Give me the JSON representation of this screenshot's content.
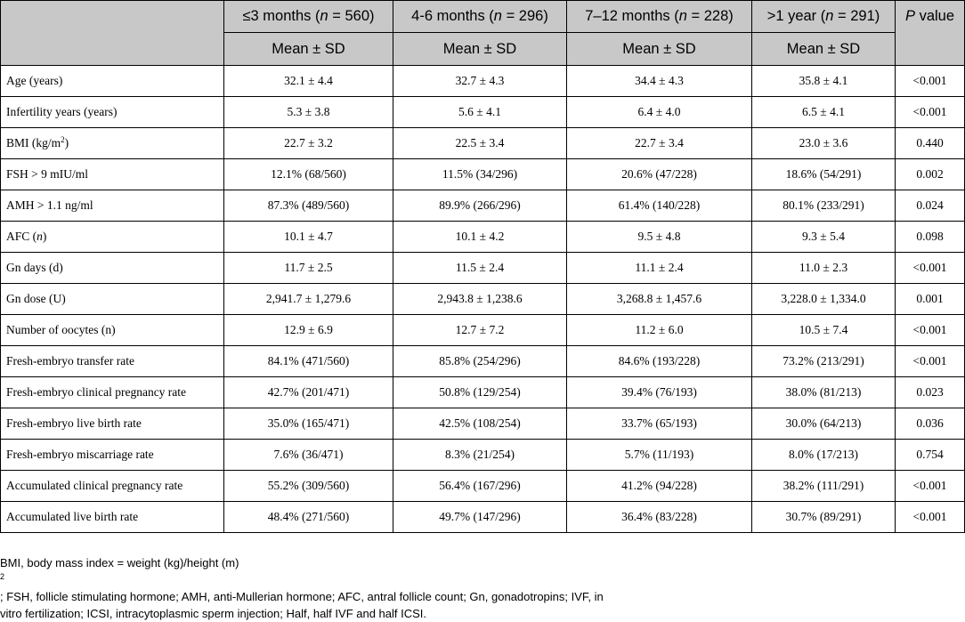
{
  "header": {
    "groups": [
      {
        "prefix": "≤3 months (",
        "n_label": "n",
        "suffix": " = 560)"
      },
      {
        "prefix": "4-6 months (",
        "n_label": "n",
        "suffix": " = 296)"
      },
      {
        "prefix": "7–12 months (",
        "n_label": "n",
        "suffix": " = 228)"
      },
      {
        "prefix": ">1 year (",
        "n_label": "n",
        "suffix": " = 291)"
      }
    ],
    "pvalue": {
      "p": "P",
      "rest": " value"
    },
    "subheaders": [
      "Mean ± SD",
      "Mean ± SD",
      "Mean ± SD",
      "Mean ± SD"
    ]
  },
  "rows": [
    {
      "label": "Age (years)",
      "values": [
        "32.1 ± 4.4",
        "32.7 ± 4.3",
        "34.4 ± 4.3",
        "35.8 ± 4.1"
      ],
      "p": "<0.001"
    },
    {
      "label": "Infertility years (years)",
      "values": [
        "5.3 ± 3.8",
        "5.6 ± 4.1",
        "6.4 ± 4.0",
        "6.5 ± 4.1"
      ],
      "p": "<0.001"
    },
    {
      "label": "BMI (kg/m",
      "label_sup": "2",
      "label_after": ")",
      "values": [
        "22.7 ± 3.2",
        "22.5 ± 3.4",
        "22.7 ± 3.4",
        "23.0 ± 3.6"
      ],
      "p": "0.440"
    },
    {
      "label": "FSH > 9 mIU/ml",
      "values": [
        "12.1% (68/560)",
        "11.5% (34/296)",
        "20.6% (47/228)",
        "18.6% (54/291)"
      ],
      "p": "0.002"
    },
    {
      "label": "AMH > 1.1 ng/ml",
      "values": [
        "87.3% (489/560)",
        "89.9% (266/296)",
        "61.4% (140/228)",
        "80.1% (233/291)"
      ],
      "p": "0.024"
    },
    {
      "label": "AFC (",
      "label_ital": "n",
      "label_after": ")",
      "values": [
        "10.1 ± 4.7",
        "10.1 ± 4.2",
        "9.5 ± 4.8",
        "9.3 ± 5.4"
      ],
      "p": "0.098"
    },
    {
      "label": "Gn days (d)",
      "values": [
        "11.7 ± 2.5",
        "11.5 ± 2.4",
        "11.1 ± 2.4",
        "11.0 ± 2.3"
      ],
      "p": "<0.001"
    },
    {
      "label": "Gn dose (U)",
      "values": [
        "2,941.7 ± 1,279.6",
        "2,943.8 ± 1,238.6",
        "3,268.8 ± 1,457.6",
        "3,228.0 ± 1,334.0"
      ],
      "p": "0.001"
    },
    {
      "label": "Number of oocytes (n)",
      "values": [
        "12.9 ± 6.9",
        "12.7 ± 7.2",
        "11.2 ± 6.0",
        "10.5 ± 7.4"
      ],
      "p": "<0.001"
    },
    {
      "label": "Fresh-embryo transfer rate",
      "values": [
        "84.1% (471/560)",
        "85.8% (254/296)",
        "84.6% (193/228)",
        "73.2% (213/291)"
      ],
      "p": "<0.001"
    },
    {
      "label": "Fresh-embryo clinical pregnancy rate",
      "values": [
        "42.7% (201/471)",
        "50.8% (129/254)",
        "39.4% (76/193)",
        "38.0% (81/213)"
      ],
      "p": "0.023"
    },
    {
      "label": "Fresh-embryo live birth rate",
      "values": [
        "35.0% (165/471)",
        "42.5% (108/254)",
        "33.7% (65/193)",
        "30.0% (64/213)"
      ],
      "p": "0.036"
    },
    {
      "label": "Fresh-embryo miscarriage rate",
      "values": [
        "7.6% (36/471)",
        "8.3% (21/254)",
        "5.7% (11/193)",
        "8.0% (17/213)"
      ],
      "p": "0.754"
    },
    {
      "label": "Accumulated clinical pregnancy rate",
      "values": [
        "55.2% (309/560)",
        "56.4% (167/296)",
        "41.2% (94/228)",
        "38.2% (111/291)"
      ],
      "p": "<0.001"
    },
    {
      "label": "Accumulated live birth rate",
      "values": [
        "48.4% (271/560)",
        "49.7% (147/296)",
        "36.4% (83/228)",
        "30.7% (89/291)"
      ],
      "p": "<0.001"
    }
  ],
  "footnote": {
    "line1_before": "BMI, body mass index = weight (kg)/height (m)",
    "line1_sup": "2",
    "line1_after": "; FSH, follicle stimulating hormone; AMH, anti-Mullerian hormone; AFC, antral follicle count; Gn, gonadotropins; IVF, in",
    "line2": "vitro fertilization; ICSI, intracytoplasmic sperm injection; Half, half IVF and half ICSI."
  }
}
